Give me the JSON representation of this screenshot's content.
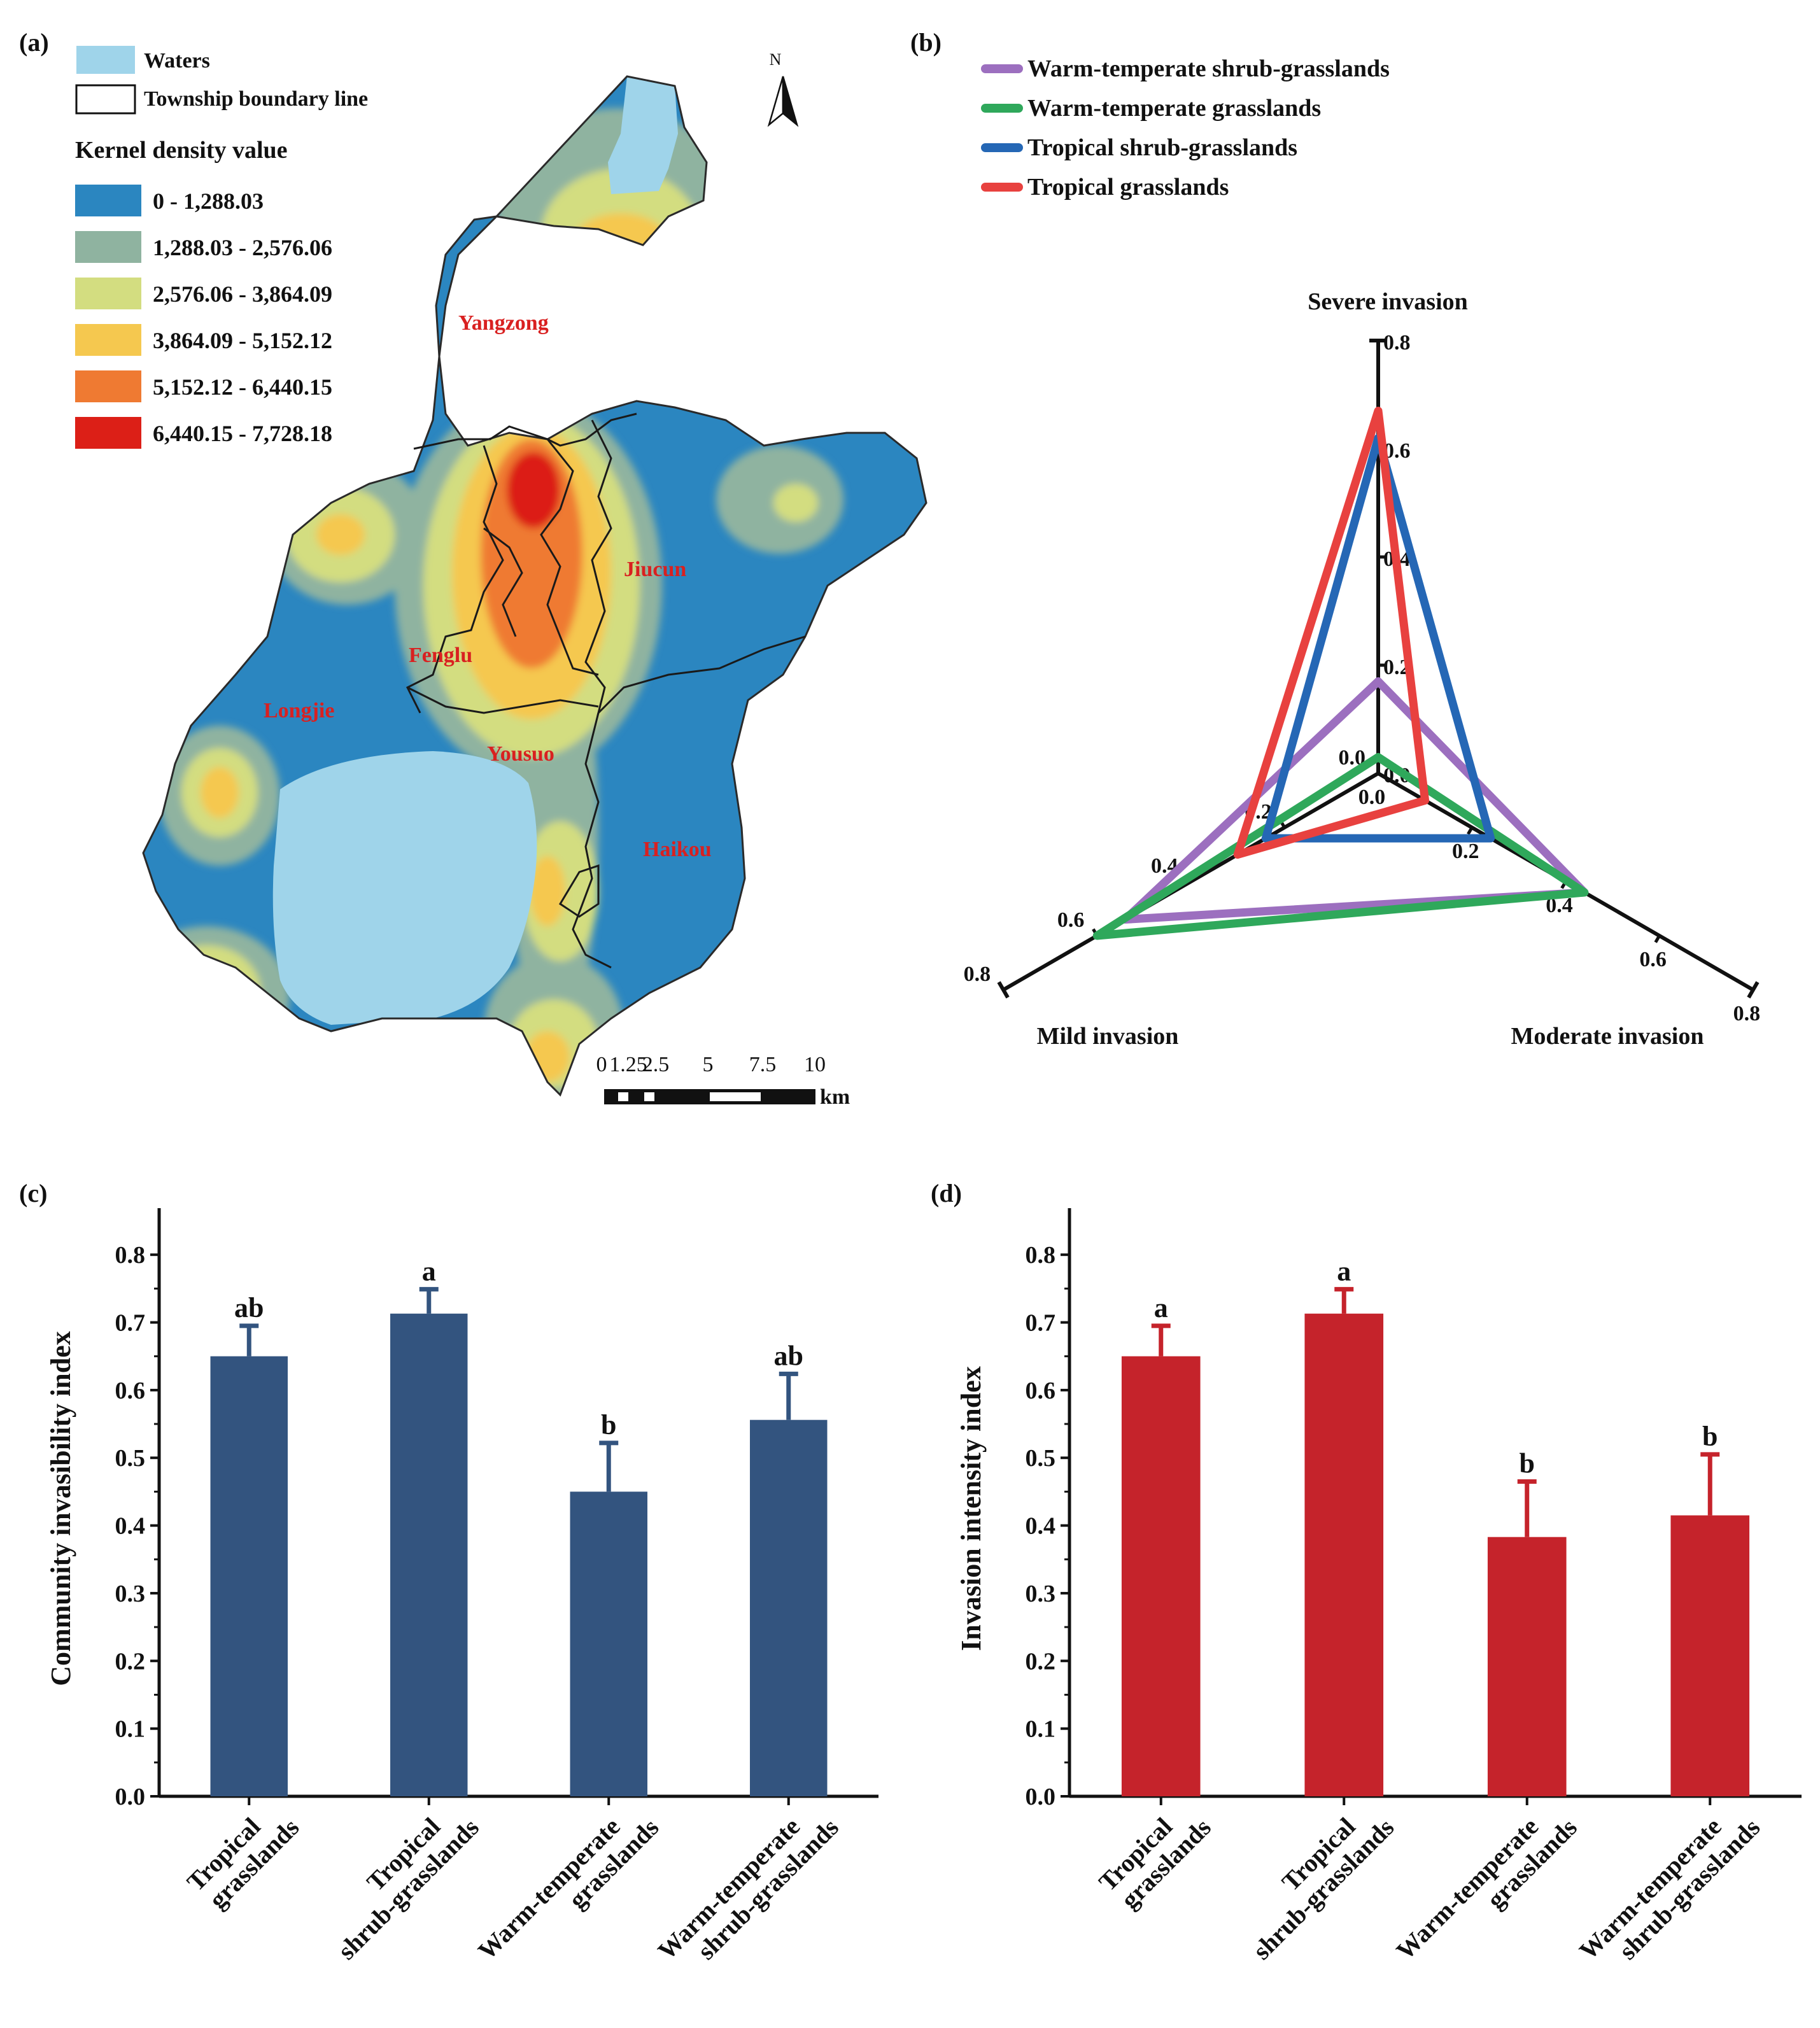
{
  "panels": {
    "a": {
      "label": "(a)",
      "legend": {
        "waters_label": "Waters",
        "boundary_label": "Township boundary line",
        "density_title": "Kernel density value",
        "classes": [
          {
            "label": "0 - 1,288.03",
            "color": "#2b86c0"
          },
          {
            "label": "1,288.03 - 2,576.06",
            "color": "#8fb3a0"
          },
          {
            "label": "2,576.06 - 3,864.09",
            "color": "#d3dd80"
          },
          {
            "label": "3,864.09 - 5,152.12",
            "color": "#f5c84f"
          },
          {
            "label": "5,152.12 - 6,440.15",
            "color": "#ef7a32"
          },
          {
            "label": "6,440.15 - 7,728.18",
            "color": "#dc1f17"
          }
        ],
        "waters_color": "#9fd4ea"
      },
      "north_label": "N",
      "towns": [
        "Yangzong",
        "Jiucun",
        "Fenglu",
        "Longjie",
        "Yousuo",
        "Haikou"
      ],
      "scalebar": {
        "ticks": [
          "0",
          "1.25",
          "2.5",
          "5",
          "7.5",
          "10"
        ],
        "unit": "km"
      }
    },
    "b": {
      "label": "(b)",
      "axes": [
        "Severe invasion",
        "Moderate invasion",
        "Mild invasion"
      ],
      "ticks": [
        "0.0",
        "0.2",
        "0.4",
        "0.6",
        "0.8"
      ]
    },
    "c": {
      "label": "(c)"
    },
    "d": {
      "label": "(d)"
    }
  },
  "chart_data": [
    {
      "panel": "b",
      "type": "radar",
      "axes": [
        "Severe invasion",
        "Moderate invasion",
        "Mild invasion"
      ],
      "rmax": 0.8,
      "series": [
        {
          "name": "Warm-temperate shrub-grasslands",
          "color": "#9c6fbf",
          "values": [
            0.17,
            0.44,
            0.54
          ]
        },
        {
          "name": "Warm-temperate grasslands",
          "color": "#2fa85b",
          "values": [
            0.03,
            0.44,
            0.6
          ]
        },
        {
          "name": "Tropical shrub-grasslands",
          "color": "#2567b5",
          "values": [
            0.62,
            0.24,
            0.24
          ]
        },
        {
          "name": "Tropical grasslands",
          "color": "#e8413f",
          "values": [
            0.67,
            0.1,
            0.3
          ]
        }
      ]
    },
    {
      "panel": "c",
      "type": "bar",
      "ylabel": "Community invasibility index",
      "ylim": [
        0,
        0.85
      ],
      "yticks": [
        "0.0",
        "0.1",
        "0.2",
        "0.3",
        "0.4",
        "0.5",
        "0.6",
        "0.7",
        "0.8"
      ],
      "color": "#33547f",
      "categories": [
        [
          "Tropical",
          "grasslands"
        ],
        [
          "Tropical",
          "shrub-grasslands"
        ],
        [
          "Warm-temperate",
          "grasslands"
        ],
        [
          "Warm-temperate",
          "shrub-grasslands"
        ]
      ],
      "values": [
        0.65,
        0.713,
        0.45,
        0.556
      ],
      "errors": [
        0.045,
        0.036,
        0.072,
        0.068
      ],
      "letters": [
        "ab",
        "a",
        "b",
        "ab"
      ]
    },
    {
      "panel": "d",
      "type": "bar",
      "ylabel": "Invasion intensity index",
      "ylim": [
        0,
        0.85
      ],
      "yticks": [
        "0.0",
        "0.1",
        "0.2",
        "0.3",
        "0.4",
        "0.5",
        "0.6",
        "0.7",
        "0.8"
      ],
      "color": "#c5232b",
      "categories": [
        [
          "Tropical",
          "grasslands"
        ],
        [
          "Tropical",
          "shrub-grasslands"
        ],
        [
          "Warm-temperate",
          "grasslands"
        ],
        [
          "Warm-temperate",
          "shrub-grasslands"
        ]
      ],
      "values": [
        0.65,
        0.713,
        0.383,
        0.415
      ],
      "errors": [
        0.045,
        0.036,
        0.082,
        0.09
      ],
      "letters": [
        "a",
        "a",
        "b",
        "b"
      ]
    }
  ]
}
